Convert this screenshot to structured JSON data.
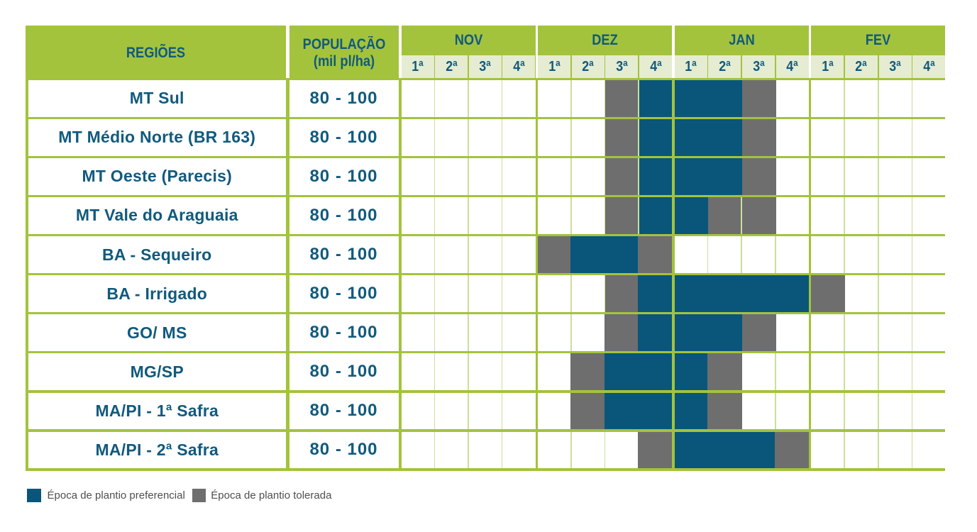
{
  "table": {
    "regions_header": "REGIÕES",
    "population_header_line1": "POPULAÇÃO",
    "population_header_line2": "(mil pl/ha)",
    "months": [
      {
        "name": "NOV",
        "weeks": [
          "1ª",
          "2ª",
          "3ª",
          "4ª"
        ]
      },
      {
        "name": "DEZ",
        "weeks": [
          "1ª",
          "2ª",
          "3ª",
          "4ª"
        ]
      },
      {
        "name": "JAN",
        "weeks": [
          "1ª",
          "2ª",
          "3ª",
          "4ª"
        ]
      },
      {
        "name": "FEV",
        "weeks": [
          "1ª",
          "2ª",
          "3ª",
          "4ª"
        ]
      }
    ],
    "rows": [
      {
        "region": "MT Sul",
        "population": "80 - 100",
        "blocks": [
          {
            "from": 7,
            "to": 7,
            "type": "tolerated"
          },
          {
            "from": 8,
            "to": 10,
            "type": "preferred",
            "padRight": true
          },
          {
            "from": 11,
            "to": 11,
            "type": "tolerated",
            "padRight": true
          }
        ]
      },
      {
        "region": "MT Médio Norte (BR 163)",
        "population": "80 - 100",
        "blocks": [
          {
            "from": 7,
            "to": 7,
            "type": "tolerated"
          },
          {
            "from": 8,
            "to": 10,
            "type": "preferred",
            "padRight": true
          },
          {
            "from": 11,
            "to": 11,
            "type": "tolerated",
            "padRight": true
          }
        ]
      },
      {
        "region": "MT Oeste (Parecis)",
        "population": "80 - 100",
        "blocks": [
          {
            "from": 7,
            "to": 7,
            "type": "tolerated"
          },
          {
            "from": 8,
            "to": 10,
            "type": "preferred",
            "padRight": true
          },
          {
            "from": 11,
            "to": 11,
            "type": "tolerated",
            "padRight": true
          }
        ]
      },
      {
        "region": "MT Vale do Araguaia",
        "population": "80 - 100",
        "blocks": [
          {
            "from": 7,
            "to": 7,
            "type": "tolerated"
          },
          {
            "from": 8,
            "to": 9,
            "type": "preferred",
            "padRight": true
          },
          {
            "from": 10,
            "to": 10,
            "type": "tolerated"
          },
          {
            "from": 11,
            "to": 11,
            "type": "tolerated",
            "padRight": true
          }
        ]
      },
      {
        "region": "BA - Sequeiro",
        "population": "80 - 100",
        "blocks": [
          {
            "from": 5,
            "to": 5,
            "type": "tolerated"
          },
          {
            "from": 6,
            "to": 7,
            "type": "preferred",
            "padLeft": true
          },
          {
            "from": 8,
            "to": 8,
            "type": "tolerated",
            "padLeft": true
          }
        ]
      },
      {
        "region": "BA - Irrigado",
        "population": "80 - 100",
        "blocks": [
          {
            "from": 7,
            "to": 7,
            "type": "tolerated"
          },
          {
            "from": 8,
            "to": 12,
            "type": "preferred",
            "padLeft": true
          },
          {
            "from": 13,
            "to": 13,
            "type": "tolerated",
            "padRight": true
          }
        ]
      },
      {
        "region": "GO/ MS",
        "population": "80 - 100",
        "blocks": [
          {
            "from": 7,
            "to": 7,
            "type": "tolerated",
            "padLeft": true
          },
          {
            "from": 8,
            "to": 10,
            "type": "preferred",
            "padLeft": true,
            "padRight": true
          },
          {
            "from": 11,
            "to": 11,
            "type": "tolerated",
            "padRight": true
          }
        ]
      },
      {
        "region": "MG/SP",
        "population": "80 - 100",
        "blocks": [
          {
            "from": 6,
            "to": 6,
            "type": "tolerated",
            "padLeft": true
          },
          {
            "from": 7,
            "to": 9,
            "type": "preferred",
            "padLeft": true
          },
          {
            "from": 10,
            "to": 10,
            "type": "tolerated",
            "padLeft": true,
            "padRight": true
          }
        ]
      },
      {
        "region": "MA/PI - 1ª Safra",
        "population": "80 - 100",
        "blocks": [
          {
            "from": 6,
            "to": 6,
            "type": "tolerated",
            "padLeft": true
          },
          {
            "from": 7,
            "to": 9,
            "type": "preferred",
            "padLeft": true
          },
          {
            "from": 10,
            "to": 10,
            "type": "tolerated",
            "padLeft": true,
            "padRight": true
          }
        ]
      },
      {
        "region": "MA/PI - 2ª Safra",
        "population": "80 - 100",
        "blocks": [
          {
            "from": 8,
            "to": 8,
            "type": "tolerated",
            "padLeft": true
          },
          {
            "from": 9,
            "to": 11,
            "type": "preferred"
          },
          {
            "from": 12,
            "to": 12,
            "type": "tolerated",
            "padLeft": true
          }
        ]
      }
    ]
  },
  "legend": {
    "preferred": "Época de plantio preferencial",
    "tolerated": "Época de plantio tolerada"
  },
  "colors": {
    "green": "#a3c33d",
    "pale_green": "#e5ecd1",
    "preferred_blue": "#09567a",
    "tolerated_gray": "#6e6e6e",
    "header_text": "#115a7d",
    "grid_line": "#cbdf9b",
    "legend_text": "#4f4f51"
  },
  "chart_data": {
    "type": "table",
    "columns": [
      "NOV 1ª",
      "NOV 2ª",
      "NOV 3ª",
      "NOV 4ª",
      "DEZ 1ª",
      "DEZ 2ª",
      "DEZ 3ª",
      "DEZ 4ª",
      "JAN 1ª",
      "JAN 2ª",
      "JAN 3ª",
      "JAN 4ª",
      "FEV 1ª",
      "FEV 2ª",
      "FEV 3ª",
      "FEV 4ª"
    ],
    "row_header_columns": [
      "REGIÕES",
      "POPULAÇÃO (mil pl/ha)"
    ],
    "rows": [
      {
        "region": "MT Sul",
        "population": "80 - 100",
        "cells": [
          0,
          0,
          0,
          0,
          0,
          0,
          2,
          1,
          1,
          1,
          2,
          0,
          0,
          0,
          0,
          0
        ]
      },
      {
        "region": "MT Médio Norte (BR 163)",
        "population": "80 - 100",
        "cells": [
          0,
          0,
          0,
          0,
          0,
          0,
          2,
          1,
          1,
          1,
          2,
          0,
          0,
          0,
          0,
          0
        ]
      },
      {
        "region": "MT Oeste (Parecis)",
        "population": "80 - 100",
        "cells": [
          0,
          0,
          0,
          0,
          0,
          0,
          2,
          1,
          1,
          1,
          2,
          0,
          0,
          0,
          0,
          0
        ]
      },
      {
        "region": "MT Vale do Araguaia",
        "population": "80 - 100",
        "cells": [
          0,
          0,
          0,
          0,
          0,
          0,
          2,
          1,
          1,
          2,
          2,
          0,
          0,
          0,
          0,
          0
        ]
      },
      {
        "region": "BA - Sequeiro",
        "population": "80 - 100",
        "cells": [
          0,
          0,
          0,
          0,
          2,
          1,
          1,
          2,
          0,
          0,
          0,
          0,
          0,
          0,
          0,
          0
        ]
      },
      {
        "region": "BA - Irrigado",
        "population": "80 - 100",
        "cells": [
          0,
          0,
          0,
          0,
          0,
          0,
          2,
          1,
          1,
          1,
          1,
          1,
          2,
          0,
          0,
          0
        ]
      },
      {
        "region": "GO/ MS",
        "population": "80 - 100",
        "cells": [
          0,
          0,
          0,
          0,
          0,
          0,
          2,
          1,
          1,
          1,
          2,
          0,
          0,
          0,
          0,
          0
        ]
      },
      {
        "region": "MG/SP",
        "population": "80 - 100",
        "cells": [
          0,
          0,
          0,
          0,
          0,
          2,
          1,
          1,
          1,
          2,
          0,
          0,
          0,
          0,
          0,
          0
        ]
      },
      {
        "region": "MA/PI - 1ª Safra",
        "population": "80 - 100",
        "cells": [
          0,
          0,
          0,
          0,
          0,
          2,
          1,
          1,
          1,
          2,
          0,
          0,
          0,
          0,
          0,
          0
        ]
      },
      {
        "region": "MA/PI - 2ª Safra",
        "population": "80 - 100",
        "cells": [
          0,
          0,
          0,
          0,
          0,
          0,
          0,
          2,
          1,
          1,
          1,
          2,
          0,
          0,
          0,
          0
        ]
      }
    ],
    "cell_legend": {
      "0": "",
      "1": "Época de plantio preferencial",
      "2": "Época de plantio tolerada"
    }
  }
}
